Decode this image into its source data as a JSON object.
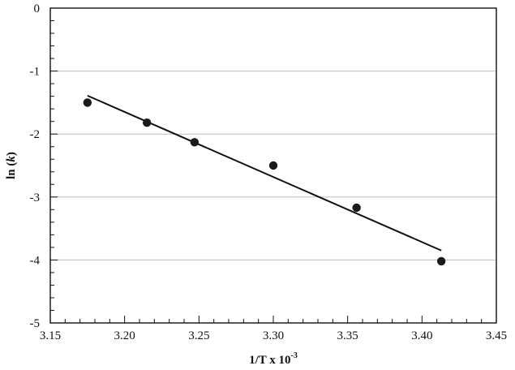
{
  "chart_data": {
    "type": "scatter",
    "xlabel": {
      "base": "1/T x 10",
      "sup": "-3"
    },
    "ylabel": {
      "prefix": "ln (",
      "var": "k",
      "suffix": ")"
    },
    "xlim": [
      3.15,
      3.45
    ],
    "ylim": [
      -5,
      0
    ],
    "x_ticks": [
      3.15,
      3.2,
      3.25,
      3.3,
      3.35,
      3.4,
      3.45
    ],
    "x_tick_labels": [
      "3.15",
      "3.20",
      "3.25",
      "3.30",
      "3.35",
      "3.40",
      "3.45"
    ],
    "y_ticks": [
      0,
      -1,
      -2,
      -3,
      -4,
      -5
    ],
    "y_tick_labels": [
      "0",
      "-1",
      "-2",
      "-3",
      "-4",
      "-5"
    ],
    "grid": "horizontal",
    "series": [
      {
        "type": "scatter",
        "x": [
          3.175,
          3.215,
          3.247,
          3.3,
          3.356,
          3.413
        ],
        "y": [
          -1.5,
          -1.82,
          -2.13,
          -2.5,
          -3.17,
          -4.02
        ]
      },
      {
        "type": "line",
        "x": [
          3.175,
          3.413
        ],
        "y": [
          -1.39,
          -3.85
        ]
      }
    ],
    "colors": {
      "points": "#1a1a1a",
      "line": "#111111",
      "grid": "#bdbdbd",
      "axes": "#111111"
    }
  }
}
